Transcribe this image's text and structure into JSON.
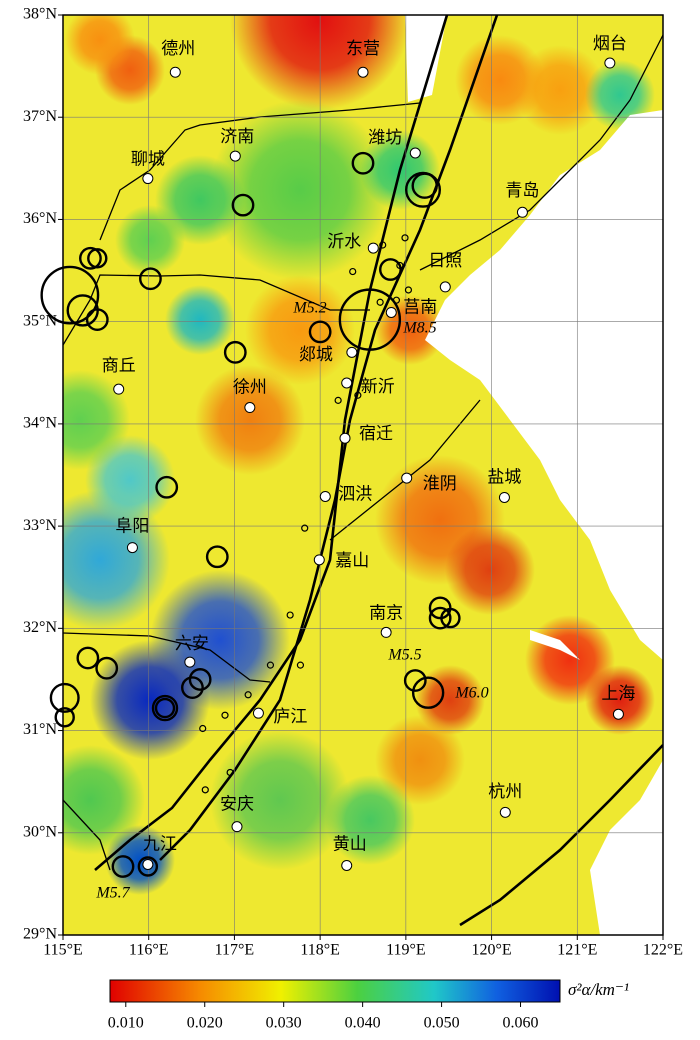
{
  "map": {
    "xlim": [
      115,
      122
    ],
    "ylim": [
      29,
      38
    ],
    "xticks": [
      {
        "value": 115,
        "label": "115°E"
      },
      {
        "value": 116,
        "label": "116°E"
      },
      {
        "value": 117,
        "label": "117°E"
      },
      {
        "value": 118,
        "label": "118°E"
      },
      {
        "value": 119,
        "label": "119°E"
      },
      {
        "value": 120,
        "label": "120°E"
      },
      {
        "value": 121,
        "label": "121°E"
      },
      {
        "value": 122,
        "label": "122°E"
      }
    ],
    "yticks": [
      {
        "value": 29,
        "label": "29°N"
      },
      {
        "value": 30,
        "label": "30°N"
      },
      {
        "value": 31,
        "label": "31°N"
      },
      {
        "value": 32,
        "label": "32°N"
      },
      {
        "value": 33,
        "label": "33°N"
      },
      {
        "value": 34,
        "label": "34°N"
      },
      {
        "value": 35,
        "label": "35°N"
      },
      {
        "value": 36,
        "label": "36°N"
      },
      {
        "value": 37,
        "label": "37°N"
      },
      {
        "value": 38,
        "label": "38°N"
      }
    ],
    "grid": true,
    "cities": [
      {
        "name": "德州",
        "lon": 116.31,
        "lat": 37.44
      },
      {
        "name": "东营",
        "lon": 118.5,
        "lat": 37.44
      },
      {
        "name": "烟台",
        "lon": 121.38,
        "lat": 37.53
      },
      {
        "name": "济南",
        "lon": 117.01,
        "lat": 36.62
      },
      {
        "name": "潍坊",
        "lon": 119.11,
        "lat": 36.65
      },
      {
        "name": "聊城",
        "lon": 115.99,
        "lat": 36.4
      },
      {
        "name": "青岛",
        "lon": 120.36,
        "lat": 36.07
      },
      {
        "name": "沂水",
        "lon": 118.62,
        "lat": 35.72
      },
      {
        "name": "日照",
        "lon": 119.46,
        "lat": 35.34
      },
      {
        "name": "莒南",
        "lon": 118.83,
        "lat": 35.09
      },
      {
        "name": "郯城",
        "lon": 118.37,
        "lat": 34.7
      },
      {
        "name": "商丘",
        "lon": 115.65,
        "lat": 34.34
      },
      {
        "name": "徐州",
        "lon": 117.18,
        "lat": 34.16
      },
      {
        "name": "新沂",
        "lon": 118.31,
        "lat": 34.4
      },
      {
        "name": "宿迁",
        "lon": 118.29,
        "lat": 33.86
      },
      {
        "name": "泗洪",
        "lon": 118.06,
        "lat": 33.29
      },
      {
        "name": "淮阴",
        "lon": 119.01,
        "lat": 33.47
      },
      {
        "name": "盐城",
        "lon": 120.15,
        "lat": 33.28
      },
      {
        "name": "阜阳",
        "lon": 115.81,
        "lat": 32.79
      },
      {
        "name": "嘉山",
        "lon": 117.99,
        "lat": 32.67
      },
      {
        "name": "南京",
        "lon": 118.77,
        "lat": 31.96
      },
      {
        "name": "六安",
        "lon": 116.48,
        "lat": 31.67
      },
      {
        "name": "庐江",
        "lon": 117.28,
        "lat": 31.17
      },
      {
        "name": "上海",
        "lon": 121.48,
        "lat": 31.16
      },
      {
        "name": "杭州",
        "lon": 120.16,
        "lat": 30.2
      },
      {
        "name": "安庆",
        "lon": 117.03,
        "lat": 30.06
      },
      {
        "name": "黄山",
        "lon": 118.31,
        "lat": 29.68
      },
      {
        "name": "九江",
        "lon": 115.99,
        "lat": 29.69
      }
    ],
    "annotations": [
      "M5.2",
      "M8.5",
      "M5.5",
      "M6.0",
      "M5.7"
    ],
    "earthquakes": [
      {
        "lon": 118.58,
        "lat": 35.02,
        "magnitude": 8.5
      },
      {
        "lon": 115.08,
        "lat": 35.26,
        "magnitude": 8.2
      },
      {
        "lon": 115.23,
        "lat": 35.11,
        "magnitude": 6.0
      },
      {
        "lon": 115.4,
        "lat": 35.02,
        "magnitude": 5.2
      },
      {
        "lon": 115.32,
        "lat": 35.62,
        "magnitude": 5.2
      },
      {
        "lon": 115.4,
        "lat": 35.62,
        "magnitude": 5.0
      },
      {
        "lon": 116.02,
        "lat": 35.42,
        "magnitude": 5.2
      },
      {
        "lon": 117.1,
        "lat": 36.14,
        "magnitude": 5.2
      },
      {
        "lon": 118.5,
        "lat": 36.55,
        "magnitude": 5.2
      },
      {
        "lon": 119.2,
        "lat": 36.29,
        "magnitude": 6.3
      },
      {
        "lon": 119.22,
        "lat": 36.33,
        "magnitude": 5.5
      },
      {
        "lon": 118.82,
        "lat": 35.51,
        "magnitude": 5.2
      },
      {
        "lon": 118.0,
        "lat": 34.9,
        "magnitude": 5.2
      },
      {
        "lon": 117.01,
        "lat": 34.7,
        "magnitude": 5.2
      },
      {
        "lon": 116.21,
        "lat": 33.38,
        "magnitude": 5.2
      },
      {
        "lon": 116.8,
        "lat": 32.7,
        "magnitude": 5.2
      },
      {
        "lon": 115.29,
        "lat": 31.71,
        "magnitude": 5.2
      },
      {
        "lon": 115.51,
        "lat": 31.61,
        "magnitude": 5.2
      },
      {
        "lon": 115.02,
        "lat": 31.32,
        "magnitude": 5.8
      },
      {
        "lon": 115.02,
        "lat": 31.13,
        "magnitude": 5.0
      },
      {
        "lon": 116.19,
        "lat": 31.22,
        "magnitude": 5.5
      },
      {
        "lon": 116.19,
        "lat": 31.22,
        "magnitude": 5.0
      },
      {
        "lon": 116.51,
        "lat": 31.42,
        "magnitude": 5.2
      },
      {
        "lon": 116.6,
        "lat": 31.5,
        "magnitude": 5.2
      },
      {
        "lon": 119.4,
        "lat": 32.2,
        "magnitude": 5.2
      },
      {
        "lon": 119.4,
        "lat": 32.1,
        "magnitude": 5.2
      },
      {
        "lon": 119.52,
        "lat": 32.1,
        "magnitude": 5.0
      },
      {
        "lon": 119.11,
        "lat": 31.49,
        "magnitude": 5.2
      },
      {
        "lon": 119.26,
        "lat": 31.37,
        "magnitude": 6.0
      },
      {
        "lon": 115.7,
        "lat": 29.67,
        "magnitude": 5.2
      },
      {
        "lon": 115.99,
        "lat": 29.67,
        "magnitude": 5.0
      },
      {
        "lon": 118.38,
        "lat": 35.49,
        "magnitude": 4.0
      },
      {
        "lon": 118.73,
        "lat": 35.75,
        "magnitude": 4.0
      },
      {
        "lon": 118.93,
        "lat": 35.55,
        "magnitude": 4.0
      },
      {
        "lon": 118.89,
        "lat": 35.21,
        "magnitude": 4.0
      },
      {
        "lon": 118.99,
        "lat": 35.82,
        "magnitude": 4.0
      },
      {
        "lon": 118.21,
        "lat": 34.23,
        "magnitude": 4.0
      },
      {
        "lon": 118.44,
        "lat": 34.28,
        "magnitude": 4.0
      },
      {
        "lon": 117.82,
        "lat": 32.98,
        "magnitude": 4.0
      },
      {
        "lon": 117.65,
        "lat": 32.13,
        "magnitude": 4.0
      },
      {
        "lon": 117.77,
        "lat": 31.64,
        "magnitude": 4.0
      },
      {
        "lon": 117.42,
        "lat": 31.64,
        "magnitude": 4.0
      },
      {
        "lon": 117.16,
        "lat": 31.35,
        "magnitude": 4.0
      },
      {
        "lon": 116.89,
        "lat": 31.15,
        "magnitude": 4.0
      },
      {
        "lon": 116.63,
        "lat": 31.02,
        "magnitude": 4.0
      },
      {
        "lon": 116.95,
        "lat": 30.59,
        "magnitude": 4.0
      },
      {
        "lon": 116.66,
        "lat": 30.42,
        "magnitude": 4.0
      },
      {
        "lon": 118.7,
        "lat": 35.19,
        "magnitude": 4.0
      },
      {
        "lon": 119.03,
        "lat": 35.31,
        "magnitude": 4.0
      }
    ],
    "colorbar": {
      "label": "σ²α/km⁻¹",
      "lim": [
        0.008,
        0.065
      ],
      "ticks": [
        {
          "value": 0.01,
          "label": "0.010"
        },
        {
          "value": 0.02,
          "label": "0.020"
        },
        {
          "value": 0.03,
          "label": "0.030"
        },
        {
          "value": 0.04,
          "label": "0.040"
        },
        {
          "value": 0.05,
          "label": "0.050"
        },
        {
          "value": 0.06,
          "label": "0.060"
        }
      ]
    }
  }
}
